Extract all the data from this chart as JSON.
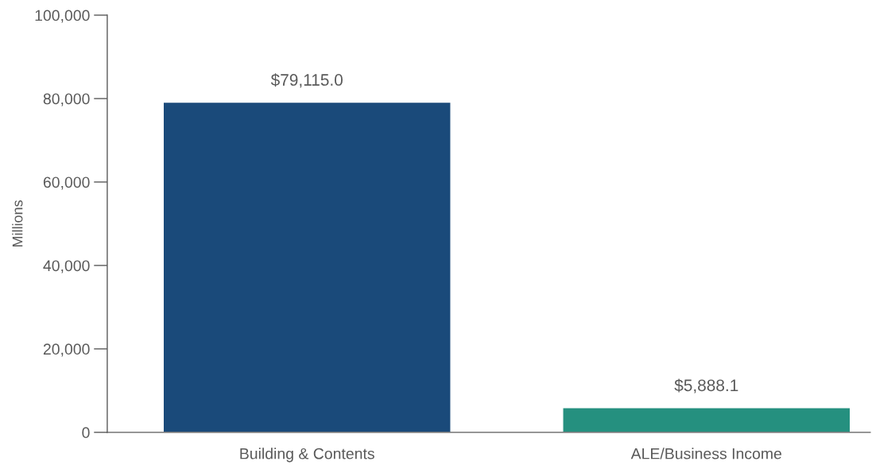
{
  "chart_data": {
    "type": "bar",
    "ylabel": "Millions",
    "categories": [
      "Building & Contents",
      "ALE/Business Income"
    ],
    "values": [
      79115.0,
      5888.1
    ],
    "colors": [
      "#1a4a7a",
      "#25907f"
    ],
    "value_labels": [
      "$79,115.0",
      "$5,888.1"
    ],
    "ylim": [
      0,
      100000
    ],
    "yticks": [
      {
        "value": 0,
        "label": "0"
      },
      {
        "value": 20000,
        "label": "20,000"
      },
      {
        "value": 40000,
        "label": "40,000"
      },
      {
        "value": 60000,
        "label": "60,000"
      },
      {
        "value": 80000,
        "label": "80,000"
      },
      {
        "value": 100000,
        "label": "100,000"
      }
    ],
    "grid": false,
    "legend": false
  }
}
